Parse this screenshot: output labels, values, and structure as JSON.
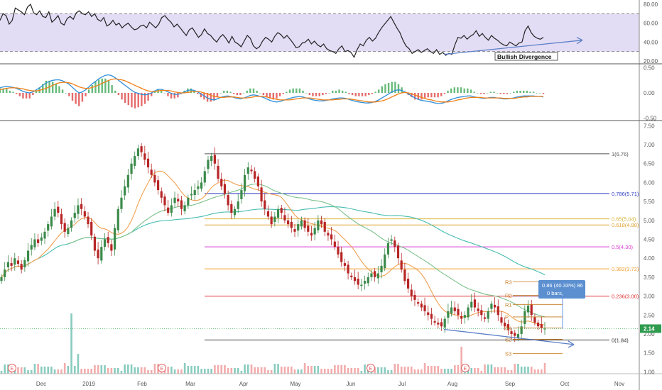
{
  "chart_data": [
    {
      "type": "line",
      "panel": "rsi",
      "ylabels": [
        "80.00",
        "60.00",
        "40.00",
        "20.00"
      ],
      "ylim": [
        17,
        83
      ],
      "bands": {
        "upper": 70,
        "lower": 30,
        "fill": "#dcd3f2",
        "stroke": "#888"
      },
      "series": [
        {
          "values": [
            63,
            70,
            68,
            59,
            63,
            76,
            74,
            72,
            69,
            77,
            80,
            71,
            69,
            73,
            67,
            66,
            72,
            61,
            64,
            68,
            60,
            58,
            65,
            67,
            64,
            71,
            73,
            70,
            69,
            72,
            67,
            70,
            64,
            62,
            66,
            57,
            59,
            63,
            58,
            60,
            55,
            58,
            60,
            56,
            53,
            54,
            57,
            58,
            55,
            61,
            58,
            55,
            59,
            66,
            68,
            64,
            61,
            56,
            59,
            55,
            51,
            47,
            53,
            55,
            50,
            45,
            48,
            54,
            49,
            47,
            43,
            40,
            45,
            48,
            44,
            39,
            46,
            40,
            38,
            35,
            41,
            47,
            44,
            36,
            33,
            35,
            41,
            45,
            43,
            40,
            46,
            50,
            48,
            44,
            47,
            43,
            39,
            34,
            35,
            39,
            40,
            43,
            38,
            41,
            37,
            35,
            38,
            33,
            31,
            30,
            28,
            33,
            36,
            30,
            31,
            29,
            24,
            32,
            38,
            36,
            42,
            45,
            41,
            44,
            50,
            55,
            59,
            63,
            67,
            61,
            55,
            50,
            42,
            36,
            33,
            28,
            30,
            32,
            29,
            31,
            33,
            30,
            28,
            32,
            27,
            29,
            26,
            28,
            27,
            37,
            45,
            44,
            47,
            43,
            46,
            48,
            52,
            46,
            49,
            45,
            42,
            47,
            44,
            42,
            39,
            37,
            36,
            40,
            38,
            36,
            39,
            40,
            52,
            57,
            50,
            46,
            44,
            43,
            45
          ]
        }
      ],
      "trendline_label": "Bullish Divergence",
      "colors": {
        "line": "#222222",
        "trend": "#5b7fc7"
      }
    },
    {
      "type": "line",
      "panel": "macd",
      "ylabels": [
        "0.50",
        "0.00",
        "-0.50"
      ],
      "ylim": [
        -0.55,
        0.55
      ],
      "series": [
        {
          "values": [
            0.1,
            0.12,
            0.13,
            0.12,
            0.11,
            0.09,
            0.06,
            0.03,
            0.01,
            0.0,
            0.02,
            0.06,
            0.1,
            0.15,
            0.2,
            0.23,
            0.25,
            0.26,
            0.26,
            0.24,
            0.21,
            0.17,
            0.11,
            0.05,
            0.0,
            0.02,
            0.06,
            0.12,
            0.18,
            0.23,
            0.28,
            0.32,
            0.35,
            0.36,
            0.34,
            0.3,
            0.25,
            0.2,
            0.15,
            0.1,
            0.05,
            0.01,
            -0.01,
            -0.03,
            -0.04,
            -0.03,
            0.0,
            0.04,
            0.07,
            0.07,
            0.05,
            0.02,
            -0.01,
            -0.03,
            -0.03,
            -0.01,
            0.02,
            0.05,
            0.06,
            0.05,
            0.02,
            -0.02,
            -0.06,
            -0.1,
            -0.13,
            -0.14,
            -0.12,
            -0.09,
            -0.07,
            -0.06,
            -0.07,
            -0.09,
            -0.11,
            -0.12,
            -0.1,
            -0.08,
            -0.05,
            -0.04,
            -0.05,
            -0.07,
            -0.09,
            -0.12,
            -0.15,
            -0.17,
            -0.18,
            -0.17,
            -0.15,
            -0.13,
            -0.11,
            -0.09,
            -0.08,
            -0.07,
            -0.08,
            -0.1,
            -0.12,
            -0.14,
            -0.15,
            -0.16,
            -0.16,
            -0.15,
            -0.14,
            -0.12,
            -0.11,
            -0.1,
            -0.1,
            -0.11,
            -0.13,
            -0.15,
            -0.17,
            -0.18,
            -0.19,
            -0.2,
            -0.2,
            -0.19,
            -0.17,
            -0.14,
            -0.1,
            -0.06,
            -0.02,
            0.02,
            0.05,
            0.06,
            0.05,
            0.02,
            -0.02,
            -0.06,
            -0.1,
            -0.13,
            -0.15,
            -0.16,
            -0.17,
            -0.18,
            -0.2,
            -0.21,
            -0.21,
            -0.19,
            -0.16,
            -0.13,
            -0.11,
            -0.09,
            -0.08,
            -0.07,
            -0.06,
            -0.06,
            -0.08,
            -0.09,
            -0.1,
            -0.11,
            -0.1,
            -0.09,
            -0.09,
            -0.1,
            -0.11,
            -0.12,
            -0.12,
            -0.11,
            -0.1,
            -0.08,
            -0.07,
            -0.06,
            -0.06,
            -0.06,
            -0.06,
            -0.07,
            -0.07,
            -0.08
          ]
        },
        {
          "values": [
            0.06,
            0.08,
            0.09,
            0.1,
            0.1,
            0.1,
            0.09,
            0.08,
            0.06,
            0.05,
            0.04,
            0.04,
            0.05,
            0.07,
            0.09,
            0.12,
            0.15,
            0.18,
            0.2,
            0.21,
            0.21,
            0.2,
            0.18,
            0.15,
            0.12,
            0.1,
            0.09,
            0.09,
            0.11,
            0.13,
            0.16,
            0.19,
            0.22,
            0.25,
            0.27,
            0.28,
            0.27,
            0.26,
            0.24,
            0.21,
            0.18,
            0.15,
            0.12,
            0.09,
            0.06,
            0.04,
            0.03,
            0.03,
            0.04,
            0.05,
            0.05,
            0.05,
            0.04,
            0.02,
            0.01,
            0.0,
            0.0,
            0.01,
            0.02,
            0.03,
            0.03,
            0.02,
            0.0,
            -0.02,
            -0.05,
            -0.07,
            -0.08,
            -0.09,
            -0.09,
            -0.08,
            -0.08,
            -0.08,
            -0.09,
            -0.1,
            -0.1,
            -0.1,
            -0.09,
            -0.08,
            -0.07,
            -0.07,
            -0.07,
            -0.08,
            -0.1,
            -0.11,
            -0.13,
            -0.14,
            -0.14,
            -0.14,
            -0.14,
            -0.13,
            -0.12,
            -0.11,
            -0.1,
            -0.1,
            -0.1,
            -0.11,
            -0.12,
            -0.13,
            -0.14,
            -0.14,
            -0.14,
            -0.14,
            -0.13,
            -0.13,
            -0.12,
            -0.12,
            -0.12,
            -0.13,
            -0.14,
            -0.15,
            -0.16,
            -0.17,
            -0.18,
            -0.18,
            -0.18,
            -0.17,
            -0.16,
            -0.14,
            -0.11,
            -0.08,
            -0.05,
            -0.02,
            0.0,
            0.01,
            0.0,
            -0.02,
            -0.04,
            -0.07,
            -0.09,
            -0.11,
            -0.13,
            -0.14,
            -0.16,
            -0.17,
            -0.18,
            -0.18,
            -0.18,
            -0.17,
            -0.16,
            -0.14,
            -0.13,
            -0.11,
            -0.1,
            -0.09,
            -0.09,
            -0.09,
            -0.09,
            -0.1,
            -0.1,
            -0.1,
            -0.1,
            -0.1,
            -0.1,
            -0.11,
            -0.11,
            -0.11,
            -0.11,
            -0.1,
            -0.09,
            -0.08,
            -0.08,
            -0.07,
            -0.07,
            -0.07,
            -0.07,
            -0.07
          ]
        }
      ],
      "colors": {
        "macd": "#2f8fd9",
        "signal": "#f07f16",
        "hist_pos": "#4caf63",
        "hist_neg": "#e05252"
      }
    },
    {
      "type": "candlestick",
      "panel": "price",
      "ylabels": [
        "7.50",
        "7.00",
        "6.50",
        "6.00",
        "5.50",
        "5.00",
        "4.50",
        "4.00",
        "3.50",
        "3.00",
        "2.50",
        "2.00",
        "1.50",
        "1.00"
      ],
      "ylim": [
        0.95,
        7.6
      ],
      "x_labels": [
        "Dec",
        "2019",
        "Feb",
        "Mar",
        "Apr",
        "May",
        "Jun",
        "Jul",
        "Aug",
        "Sep",
        "Oct",
        "Nov"
      ],
      "closes": [
        3.5,
        3.7,
        3.9,
        3.8,
        4.0,
        3.85,
        3.7,
        3.95,
        4.2,
        4.35,
        4.5,
        4.4,
        4.55,
        4.7,
        4.9,
        5.1,
        5.3,
        5.2,
        4.9,
        4.7,
        4.8,
        5.0,
        5.2,
        5.4,
        5.3,
        5.1,
        4.9,
        4.6,
        4.2,
        4.0,
        4.3,
        4.5,
        4.4,
        4.2,
        4.8,
        5.3,
        5.6,
        5.9,
        6.2,
        6.5,
        6.7,
        6.9,
        6.8,
        6.6,
        6.4,
        6.2,
        6.0,
        5.8,
        5.6,
        5.4,
        5.2,
        5.4,
        5.6,
        5.5,
        5.3,
        5.4,
        5.6,
        5.7,
        5.8,
        5.9,
        6.0,
        6.3,
        6.6,
        6.7,
        6.5,
        6.1,
        5.9,
        5.7,
        5.4,
        5.2,
        5.3,
        5.5,
        5.8,
        6.2,
        6.4,
        6.3,
        6.1,
        5.9,
        5.5,
        5.3,
        5.1,
        4.9,
        5.1,
        5.3,
        5.2,
        5.0,
        4.9,
        4.8,
        4.7,
        4.9,
        5.0,
        4.8,
        4.7,
        4.6,
        4.8,
        5.0,
        4.9,
        4.7,
        4.6,
        4.5,
        4.3,
        4.1,
        3.9,
        3.8,
        3.6,
        3.5,
        3.4,
        3.3,
        3.3,
        3.4,
        3.5,
        3.6,
        3.5,
        3.6,
        3.8,
        4.1,
        4.4,
        4.5,
        4.3,
        4.0,
        3.7,
        3.4,
        3.2,
        3.0,
        2.9,
        2.8,
        2.7,
        2.6,
        2.5,
        2.4,
        2.3,
        2.25,
        2.2,
        2.4,
        2.6,
        2.7,
        2.6,
        2.5,
        2.4,
        2.5,
        2.7,
        2.85,
        2.7,
        2.6,
        2.5,
        2.4,
        2.6,
        2.8,
        2.7,
        2.5,
        2.3,
        2.2,
        2.1,
        2.0,
        1.95,
        2.0,
        2.2,
        2.6,
        2.75,
        2.5,
        2.3,
        2.2,
        2.15,
        2.14
      ],
      "last_price": "2.14",
      "fib_levels": [
        {
          "label": "1(6.76)",
          "value": 6.76,
          "color": "#555555"
        },
        {
          "label": "0.786(5.71)",
          "value": 5.71,
          "color": "#2b3bbf"
        },
        {
          "label": "0.65(5.04)",
          "value": 5.04,
          "color": "#d9b23a"
        },
        {
          "label": "0.618(4.88)",
          "value": 4.88,
          "color": "#e0a030"
        },
        {
          "label": "0.5(4.30)",
          "value": 4.3,
          "color": "#d83ad0"
        },
        {
          "label": "0.382(3.72)",
          "value": 3.72,
          "color": "#f0a030"
        },
        {
          "label": "0.236(3.00)",
          "value": 3.0,
          "color": "#e03030"
        },
        {
          "label": "0(1.84)",
          "value": 1.84,
          "color": "#333333"
        }
      ],
      "pivots": [
        {
          "label": "R3",
          "value": 3.38
        },
        {
          "label": "R2",
          "value": 3.02
        },
        {
          "label": "R1",
          "value": 2.78
        },
        {
          "label": "P",
          "value": 2.45
        },
        {
          "label": "S1",
          "value": 2.16
        },
        {
          "label": "S2",
          "value": 1.86
        },
        {
          "label": "S3",
          "value": 1.48
        }
      ],
      "measure_box": {
        "line1": "0.86 (40.33%) 86",
        "line2": "0 bars,"
      },
      "earnings_marker": "E",
      "ma_colors": {
        "fast": "#f0a050",
        "mid": "#7cc08a",
        "slow": "#45bcb0"
      },
      "candle_colors": {
        "up": "#3b8a4a",
        "down": "#b72525"
      }
    }
  ]
}
